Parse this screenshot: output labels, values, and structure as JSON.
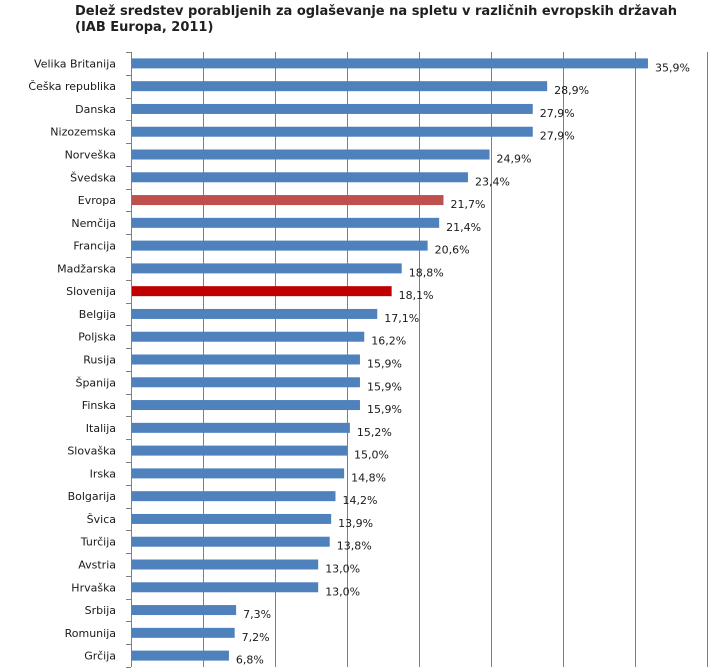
{
  "chart_data": {
    "type": "bar",
    "orientation": "horizontal",
    "title": "Delež sredstev porabljenih za oglaševanje na spletu v različnih evropskih državah",
    "subtitle": "(IAB Europa, 2011)",
    "categories": [
      "Velika Britanija",
      "Češka republika",
      "Danska",
      "Nizozemska",
      "Norveška",
      "Švedska",
      "Evropa",
      "Nemčija",
      "Francija",
      "Madžarska",
      "Slovenija",
      "Belgija",
      "Poljska",
      "Rusija",
      "Španija",
      "Finska",
      "Italija",
      "Slovaška",
      "Irska",
      "Bolgarija",
      "Švica",
      "Turčija",
      "Avstria",
      "Hrvaška",
      "Srbija",
      "Romunija",
      "Grčija"
    ],
    "values": [
      35.9,
      28.9,
      27.9,
      27.9,
      24.9,
      23.4,
      21.7,
      21.4,
      20.6,
      18.8,
      18.1,
      17.1,
      16.2,
      15.9,
      15.9,
      15.9,
      15.2,
      15.0,
      14.8,
      14.2,
      13.9,
      13.8,
      13.0,
      13.0,
      7.3,
      7.2,
      6.8
    ],
    "value_labels": [
      "35,9%",
      "28,9%",
      "27,9%",
      "27,9%",
      "24,9%",
      "23,4%",
      "21,7%",
      "21,4%",
      "20,6%",
      "18,8%",
      "18,1%",
      "17,1%",
      "16,2%",
      "15,9%",
      "15,9%",
      "15,9%",
      "15,2%",
      "15,0%",
      "14,8%",
      "14,2%",
      "13,9%",
      "13,8%",
      "13,0%",
      "13,0%",
      "7,3%",
      "7,2%",
      "6,8%"
    ],
    "xlim": [
      0,
      40
    ],
    "grid": true,
    "colors": {
      "default": "#4f81bd",
      "Evropa": "#c0504d",
      "Slovenija": "#c00000",
      "grid": "#7f7f7f",
      "axis": "#7f7f7f"
    }
  }
}
